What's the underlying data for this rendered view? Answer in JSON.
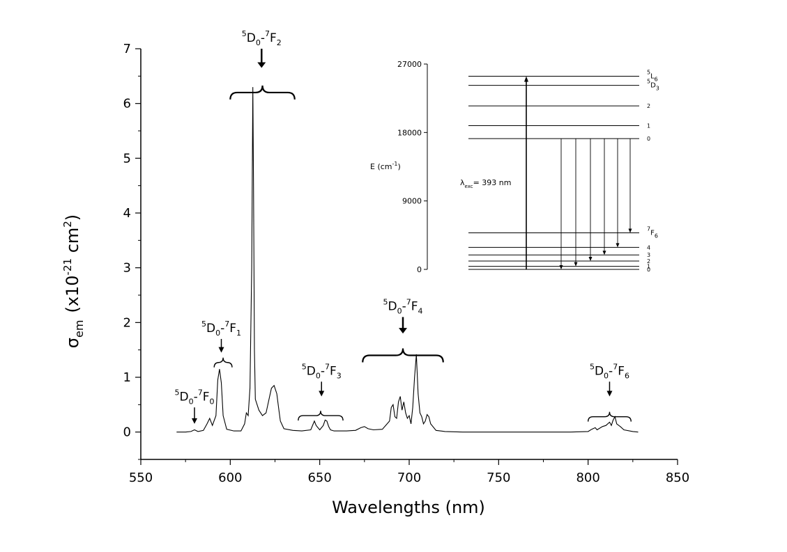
{
  "chart_data": {
    "type": "line",
    "xlabel": "Wavelengths (nm)",
    "ylabel": {
      "main": "σ",
      "sub": "em",
      "unit_pre": "(x10",
      "unit_exp": "-21",
      "unit_mid": " cm",
      "unit_exp2": "2",
      "unit_post": ")"
    },
    "xlim": [
      550,
      850
    ],
    "ylim": [
      -0.5,
      7
    ],
    "xticks": [
      "550",
      "600",
      "650",
      "700",
      "750",
      "800",
      "850"
    ],
    "yticks": [
      "0",
      "1",
      "2",
      "3",
      "4",
      "5",
      "6",
      "7"
    ],
    "grid": false,
    "series": [
      {
        "x": [
          570,
          575,
          578,
          580,
          582,
          585,
          587,
          588.5,
          590,
          592,
          593,
          594,
          595,
          596,
          598,
          602,
          606,
          608,
          609,
          610,
          611,
          612,
          612.6,
          613,
          613.5,
          614,
          616,
          618,
          620,
          622,
          623,
          624.5,
          626,
          627,
          628,
          630,
          635,
          640,
          645,
          647,
          648,
          650,
          652,
          653,
          654,
          655,
          656,
          658,
          660,
          662,
          665,
          670,
          673,
          675,
          677,
          680,
          685,
          689,
          690,
          691,
          692,
          693,
          694,
          695,
          696,
          697,
          698,
          699,
          700,
          701,
          702,
          703,
          704,
          705,
          706,
          707,
          708,
          709,
          710,
          711,
          712,
          715,
          720,
          730,
          760,
          790,
          800,
          802,
          804,
          805,
          806,
          808,
          810,
          812,
          813,
          814,
          815,
          816,
          818,
          820,
          825,
          828
        ],
        "y": [
          0,
          0,
          0.01,
          0.04,
          0.01,
          0.03,
          0.15,
          0.25,
          0.12,
          0.3,
          0.95,
          1.15,
          0.9,
          0.3,
          0.05,
          0.02,
          0.02,
          0.15,
          0.35,
          0.3,
          0.8,
          3.0,
          6.3,
          4.5,
          1.5,
          0.6,
          0.4,
          0.3,
          0.35,
          0.65,
          0.8,
          0.85,
          0.7,
          0.45,
          0.2,
          0.06,
          0.03,
          0.02,
          0.04,
          0.2,
          0.12,
          0.04,
          0.12,
          0.22,
          0.2,
          0.1,
          0.04,
          0.02,
          0.02,
          0.02,
          0.02,
          0.03,
          0.08,
          0.1,
          0.06,
          0.04,
          0.05,
          0.2,
          0.45,
          0.5,
          0.28,
          0.25,
          0.55,
          0.65,
          0.4,
          0.55,
          0.35,
          0.25,
          0.3,
          0.15,
          0.45,
          1.0,
          1.42,
          0.7,
          0.35,
          0.28,
          0.15,
          0.2,
          0.32,
          0.28,
          0.15,
          0.03,
          0.01,
          0,
          0,
          0,
          0.01,
          0.05,
          0.08,
          0.04,
          0.06,
          0.1,
          0.12,
          0.18,
          0.12,
          0.22,
          0.28,
          0.15,
          0.1,
          0.04,
          0.01,
          0
        ]
      }
    ],
    "annotations": [
      {
        "id": "f0",
        "x": 580,
        "label": "D",
        "sup1": "5",
        "sub1": "0",
        "dash": "-",
        "sup2": "7",
        "letter": "F",
        "sub2": "0",
        "arrow_top": 0.45,
        "arrow_bottom": 0.15,
        "bracket": null
      },
      {
        "id": "f1",
        "x": 595,
        "label": "D",
        "sup1": "5",
        "sub1": "0",
        "dash": "-",
        "sup2": "7",
        "letter": "F",
        "sub2": "1",
        "arrow_top": 1.7,
        "arrow_bottom": 1.45,
        "bracket": [
          591,
          601,
          1.27
        ]
      },
      {
        "id": "f2",
        "x": 617.5,
        "label": "D",
        "sup1": "5",
        "sub1": "0",
        "dash": "-",
        "sup2": "7",
        "letter": "F",
        "sub2": "2",
        "arrow_top": 7.0,
        "arrow_bottom": 6.65,
        "bracket": [
          600,
          636,
          6.2
        ]
      },
      {
        "id": "f3",
        "x": 651,
        "label": "D",
        "sup1": "5",
        "sub1": "0",
        "dash": "-",
        "sup2": "7",
        "letter": "F",
        "sub2": "3",
        "arrow_top": 0.92,
        "arrow_bottom": 0.65,
        "bracket": [
          638,
          663,
          0.3
        ]
      },
      {
        "id": "f4",
        "x": 696.5,
        "label": "D",
        "sup1": "5",
        "sub1": "0",
        "dash": "-",
        "sup2": "7",
        "letter": "F",
        "sub2": "4",
        "arrow_top": 2.1,
        "arrow_bottom": 1.8,
        "bracket": [
          674,
          719,
          1.4
        ]
      },
      {
        "id": "f6",
        "x": 812,
        "label": "D",
        "sup1": "5",
        "sub1": "0",
        "dash": "-",
        "sup2": "7",
        "letter": "F",
        "sub2": "6",
        "arrow_top": 0.92,
        "arrow_bottom": 0.65,
        "bracket": [
          800,
          824,
          0.28
        ]
      }
    ],
    "inset": {
      "ylabel": "E (cm",
      "ylabel_exp": "-1",
      "ylabel_post": ")",
      "yticks": [
        "0",
        "9000",
        "18000",
        "27000"
      ],
      "ylim": [
        0,
        27000
      ],
      "levels": [
        {
          "e": 25400,
          "label": "L",
          "pre": "5",
          "sub": "6"
        },
        {
          "e": 24200,
          "label": "D",
          "pre": "5",
          "sub": "3"
        },
        {
          "e": 21500,
          "label": "2"
        },
        {
          "e": 18900,
          "label": "1"
        },
        {
          "e": 17200,
          "label": "0"
        },
        {
          "e": 4800,
          "label": "F",
          "pre": "7",
          "sub": "6"
        },
        {
          "e": 2900,
          "label": "4"
        },
        {
          "e": 1900,
          "label": "3"
        },
        {
          "e": 1100,
          "label": "2"
        },
        {
          "e": 400,
          "label": "1"
        },
        {
          "e": 0,
          "label": "0"
        }
      ],
      "excitation_label": "λ",
      "excitation_sub": "exc",
      "excitation_value": "= 393 nm"
    }
  }
}
